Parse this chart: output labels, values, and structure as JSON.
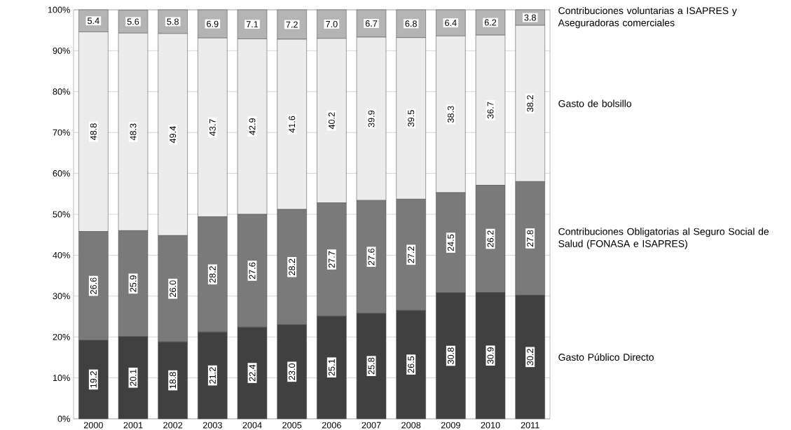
{
  "chart_data": {
    "type": "bar",
    "stacked": true,
    "grid": "y",
    "ylim": [
      0,
      100
    ],
    "yticks": [
      {
        "value": 0,
        "label": "0%"
      },
      {
        "value": 10,
        "label": "10%"
      },
      {
        "value": 20,
        "label": "20%"
      },
      {
        "value": 30,
        "label": "30%"
      },
      {
        "value": 40,
        "label": "40%"
      },
      {
        "value": 50,
        "label": "50%"
      },
      {
        "value": 60,
        "label": "60%"
      },
      {
        "value": 70,
        "label": "70%"
      },
      {
        "value": 80,
        "label": "80%"
      },
      {
        "value": 90,
        "label": "90%"
      },
      {
        "value": 100,
        "label": "100%"
      }
    ],
    "categories": [
      "2000",
      "2001",
      "2002",
      "2003",
      "2004",
      "2005",
      "2006",
      "2007",
      "2008",
      "2009",
      "2010",
      "2011"
    ],
    "series": [
      {
        "name": "Gasto Público Directo",
        "color": "#404040",
        "values": [
          19.2,
          20.1,
          18.8,
          21.2,
          22.4,
          23.0,
          25.1,
          25.8,
          26.5,
          30.8,
          30.9,
          30.2
        ],
        "value_labels": [
          "19.2",
          "20.1",
          "18.8",
          "21.2",
          "22.4",
          "23.0",
          "25.1",
          "25.8",
          "26.5",
          "30.8",
          "30.9",
          "30.2"
        ]
      },
      {
        "name": "Contribuciones Obligatorias al Seguro Social de Salud (FONASA e ISAPRES)",
        "color": "#7a7a7a",
        "values": [
          26.6,
          25.9,
          26.0,
          28.2,
          27.6,
          28.2,
          27.7,
          27.6,
          27.2,
          24.5,
          26.2,
          27.8
        ],
        "value_labels": [
          "26.6",
          "25.9",
          "26.0",
          "28.2",
          "27.6",
          "28.2",
          "27.7",
          "27.6",
          "27.2",
          "24.5",
          "26.2",
          "27.8"
        ]
      },
      {
        "name": "Gasto de bolsillo",
        "color": "#ececec",
        "values": [
          48.8,
          48.3,
          49.4,
          43.7,
          42.9,
          41.6,
          40.2,
          39.9,
          39.5,
          38.3,
          36.7,
          38.2
        ],
        "value_labels": [
          "48.8",
          "48.3",
          "49.4",
          "43.7",
          "42.9",
          "41.6",
          "40.2",
          "39.9",
          "39.5",
          "38.3",
          "36.7",
          "38.2"
        ]
      },
      {
        "name": "Contribuciones voluntarias a ISAPRES y Aseguradoras comerciales",
        "color": "#b4b4b4",
        "values": [
          5.4,
          5.6,
          5.8,
          6.9,
          7.1,
          7.2,
          7.0,
          6.7,
          6.8,
          6.4,
          6.2,
          3.8
        ],
        "value_labels": [
          "5.4",
          "5.6",
          "5.8",
          "6.9",
          "7.1",
          "7.2",
          "7.0",
          "6.7",
          "6.8",
          "6.4",
          "6.2",
          "3.8"
        ]
      }
    ]
  }
}
